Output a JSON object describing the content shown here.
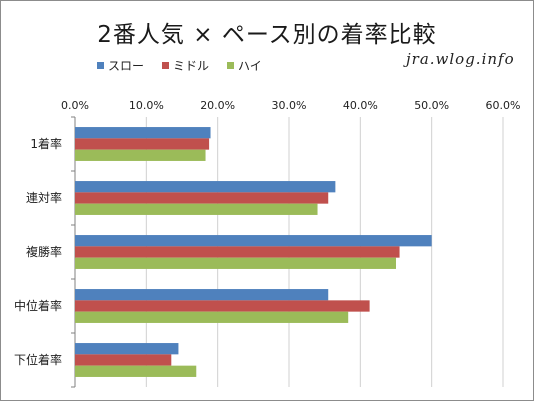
{
  "chart_data": {
    "type": "bar",
    "orientation": "horizontal",
    "title": "2番人気 × ペース別の着率比較",
    "categories": [
      "1着率",
      "連対率",
      "複勝率",
      "中位着率",
      "下位着率"
    ],
    "series": [
      {
        "name": "スロー",
        "color": "#4f81bd",
        "values": [
          19.0,
          36.5,
          50.0,
          35.5,
          14.5
        ]
      },
      {
        "name": "ミドル",
        "color": "#c0504d",
        "values": [
          18.8,
          35.5,
          45.5,
          41.3,
          13.5
        ]
      },
      {
        "name": "ハイ",
        "color": "#9bbb59",
        "values": [
          18.3,
          34.0,
          45.0,
          38.3,
          17.0
        ]
      }
    ],
    "xlim": [
      0,
      60
    ],
    "xticks": [
      "0.0%",
      "10.0%",
      "20.0%",
      "30.0%",
      "40.0%",
      "50.0%",
      "60.0%"
    ],
    "grid": true,
    "legend": "top-left"
  },
  "watermark": "jra.wlog.info"
}
